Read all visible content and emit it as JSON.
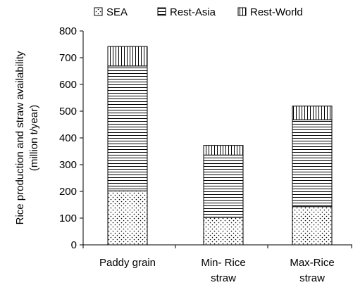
{
  "chart_data": {
    "type": "bar",
    "stacked": true,
    "categories": [
      "Paddy grain",
      "Min- Rice straw",
      "Max-Rice straw"
    ],
    "category_lines": [
      [
        "Paddy grain"
      ],
      [
        "Min- Rice",
        "straw"
      ],
      [
        "Max-Rice",
        "straw"
      ]
    ],
    "series": [
      {
        "name": "SEA",
        "values": [
          202,
          103,
          143
        ]
      },
      {
        "name": "Rest-Asia",
        "values": [
          467,
          233,
          325
        ]
      },
      {
        "name": "Rest-World",
        "values": [
          73,
          36,
          51
        ]
      }
    ],
    "patterns": [
      "dots",
      "horizontal-lines",
      "vertical-lines"
    ],
    "ylabel_lines": [
      "Rice production and straw availability",
      "(million t/year)"
    ],
    "ylim": [
      0,
      800
    ],
    "yticks": [
      0,
      100,
      200,
      300,
      400,
      500,
      600,
      700,
      800
    ],
    "grid": false,
    "legend_position": "top"
  }
}
